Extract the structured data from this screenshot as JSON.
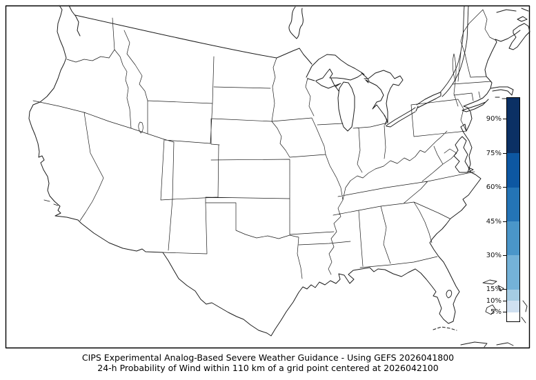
{
  "figure": {
    "background": "#ffffff",
    "frame_color": "#000000"
  },
  "caption": {
    "line1": "CIPS Experimental Analog-Based Severe Weather Guidance - Using GEFS 2026041800",
    "line2": "24-h Probability of Wind within 110 km of a grid point centered at 2026042100"
  },
  "map": {
    "description": "Blank outline map of the continental United States with state borders; no probability areas at or above 5% are shaded",
    "line_color": "#1a1a1a",
    "land_color": "#ffffff",
    "water_color": "#ffffff"
  },
  "colorbar": {
    "unit": "%",
    "bottom_pct": 1.0,
    "top_pct": 99.3,
    "segments": [
      {
        "from": 1.0,
        "to": 5,
        "color": "#ffffff"
      },
      {
        "from": 5,
        "to": 10,
        "color": "#cfe0f1"
      },
      {
        "from": 10,
        "to": 15,
        "color": "#a5cce3"
      },
      {
        "from": 15,
        "to": 30,
        "color": "#74b2d8"
      },
      {
        "from": 30,
        "to": 45,
        "color": "#4a96c9"
      },
      {
        "from": 45,
        "to": 60,
        "color": "#2474b6"
      },
      {
        "from": 60,
        "to": 75,
        "color": "#0d57a2"
      },
      {
        "from": 75,
        "to": 99.3,
        "color": "#0b3064"
      }
    ],
    "ticks": [
      {
        "label": "90%",
        "pct": 90
      },
      {
        "label": "75%",
        "pct": 75
      },
      {
        "label": "60%",
        "pct": 60
      },
      {
        "label": "45%",
        "pct": 45
      },
      {
        "label": "30%",
        "pct": 30
      },
      {
        "label": "15%",
        "pct": 15
      },
      {
        "label": "10%",
        "pct": 10
      },
      {
        "label": "5%",
        "pct": 5
      }
    ]
  }
}
